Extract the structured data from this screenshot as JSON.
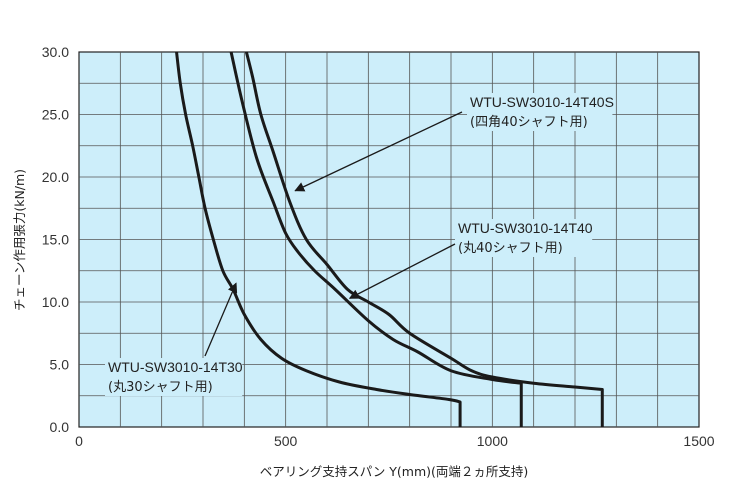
{
  "chart_data": {
    "type": "line",
    "xlabel": "ベアリング支持スパン Y(mm)(両端２ヵ所支持)",
    "ylabel": "チェーン作用張力(kN/m)",
    "xlim": [
      0,
      1500
    ],
    "ylim": [
      0,
      30
    ],
    "x_ticks": [
      "0",
      "500",
      "1000",
      "1500"
    ],
    "y_ticks": [
      "0.0",
      "5.0",
      "10.0",
      "15.0",
      "20.0",
      "25.0",
      "30.0"
    ],
    "grid": true,
    "background_color": "#cdeefa",
    "line_color": "#1a1a1a",
    "series": [
      {
        "name": "WTU-SW3010-14T30",
        "subtitle": "(丸30シャフト用)",
        "points": [
          [
            236,
            30
          ],
          [
            245,
            27.5
          ],
          [
            258,
            25
          ],
          [
            275,
            22.5
          ],
          [
            290,
            20
          ],
          [
            305,
            17.5
          ],
          [
            325,
            15
          ],
          [
            348,
            12.5
          ],
          [
            373,
            11
          ],
          [
            400,
            9
          ],
          [
            440,
            7
          ],
          [
            490,
            5.5
          ],
          [
            550,
            4.5
          ],
          [
            630,
            3.6
          ],
          [
            720,
            3
          ],
          [
            800,
            2.6
          ],
          [
            895,
            2.2
          ],
          [
            922,
            2
          ]
        ],
        "end_drop": [
          922,
          0
        ]
      },
      {
        "name": "WTU-SW3010-14T40",
        "subtitle": "(丸40シャフト用)",
        "points": [
          [
            368,
            30
          ],
          [
            395,
            26
          ],
          [
            430,
            21.5
          ],
          [
            470,
            18
          ],
          [
            500,
            15.5
          ],
          [
            530,
            14
          ],
          [
            570,
            12.5
          ],
          [
            620,
            11
          ],
          [
            700,
            8.5
          ],
          [
            760,
            7
          ],
          [
            820,
            6
          ],
          [
            900,
            4.5
          ],
          [
            1000,
            3.8
          ],
          [
            1070,
            3.5
          ]
        ],
        "end_drop": [
          1070,
          0
        ]
      },
      {
        "name": "WTU-SW3010-14T40S",
        "subtitle": "(四角40シャフト用)",
        "points": [
          [
            405,
            30
          ],
          [
            420,
            28
          ],
          [
            440,
            25
          ],
          [
            470,
            22
          ],
          [
            510,
            18
          ],
          [
            550,
            15
          ],
          [
            600,
            13
          ],
          [
            650,
            11
          ],
          [
            700,
            10
          ],
          [
            750,
            9
          ],
          [
            800,
            7.5
          ],
          [
            900,
            5.5
          ],
          [
            950,
            4.5
          ],
          [
            1000,
            4
          ],
          [
            1100,
            3.5
          ],
          [
            1200,
            3.2
          ],
          [
            1266,
            3
          ]
        ],
        "end_drop": [
          1266,
          0
        ]
      }
    ],
    "annotations": [
      {
        "series": 0,
        "text": "WTU-SW3010-14T30",
        "sub": "(丸30シャフト用)",
        "arrow_to": [
          380,
          11.5
        ]
      },
      {
        "series": 1,
        "text": "WTU-SW3010-14T40",
        "sub": "(丸40シャフト用)",
        "arrow_to": [
          655,
          10.3
        ]
      },
      {
        "series": 2,
        "text": "WTU-SW3010-14T40S",
        "sub": "(四角40シャフト用)",
        "arrow_to": [
          523,
          18.9
        ]
      }
    ]
  }
}
